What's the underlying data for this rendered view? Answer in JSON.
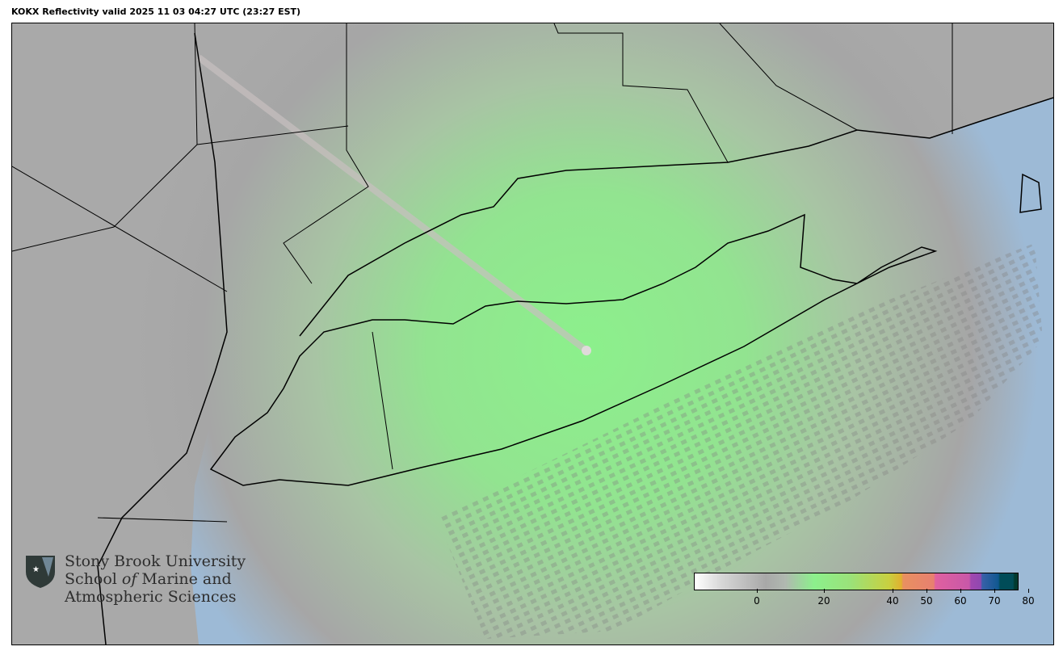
{
  "title": "KOKX Reflectivity valid 2025 11 03 04:27 UTC (23:27 EST)",
  "map": {
    "radar_site": "KOKX",
    "colors": {
      "ocean": "#9dbad6",
      "land_no_echo": "#a9a9a9",
      "clear_air_echo": "#8cf08c",
      "coastline": "#000000"
    }
  },
  "colorbar": {
    "ticks": [
      "0",
      "20",
      "40",
      "50",
      "60",
      "70",
      "80"
    ],
    "range_dbz": [
      -30,
      80
    ]
  },
  "logo": {
    "line1": "Stony Brook University",
    "line2_a": "School ",
    "line2_b": "of",
    "line2_c": " Marine and",
    "line3": "Atmospheric Sciences"
  }
}
